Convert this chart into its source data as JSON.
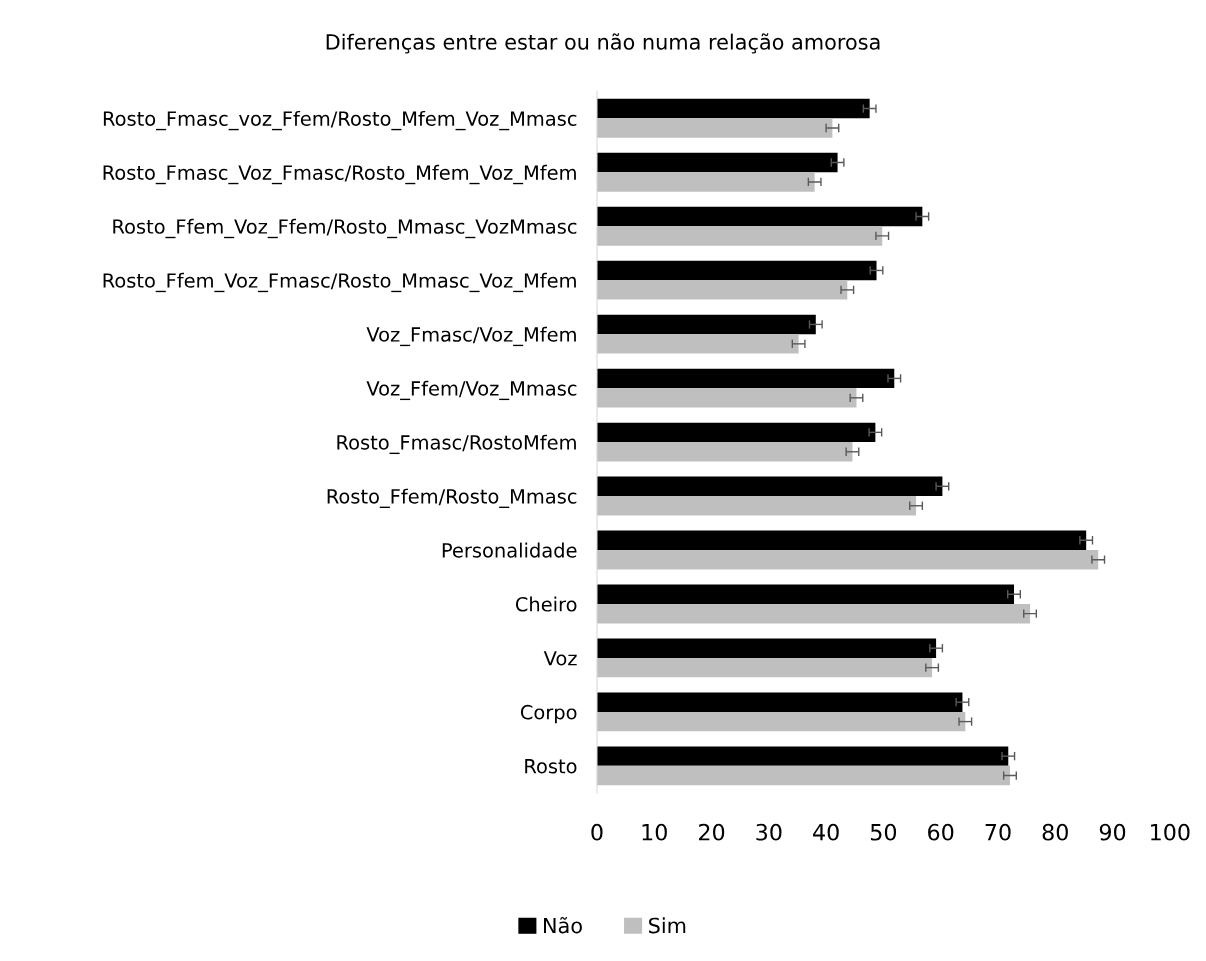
{
  "chart_data": {
    "type": "bar",
    "orientation": "horizontal",
    "title": "Diferenças entre estar ou não numa relação amorosa",
    "categories": [
      "Rosto_Fmasc_voz_Ffem/Rosto_Mfem_Voz_Mmasc",
      "Rosto_Fmasc_Voz_Fmasc/Rosto_Mfem_Voz_Mfem",
      "Rosto_Ffem_Voz_Ffem/Rosto_Mmasc_VozMmasc",
      "Rosto_Ffem_Voz_Fmasc/Rosto_Mmasc_Voz_Mfem",
      "Voz_Fmasc/Voz_Mfem",
      "Voz_Ffem/Voz_Mmasc",
      "Rosto_Fmasc/RostoMfem",
      "Rosto_Ffem/Rosto_Mmasc",
      "Personalidade",
      "Cheiro",
      "Voz",
      "Corpo",
      "Rosto"
    ],
    "series": [
      {
        "name": "Não",
        "color": "#000000",
        "values": [
          47.6,
          42.0,
          56.8,
          48.8,
          38.2,
          51.9,
          48.6,
          60.3,
          85.4,
          72.8,
          59.2,
          63.8,
          71.8
        ],
        "errors": [
          1.1,
          1.1,
          1.1,
          1.1,
          1.1,
          1.1,
          1.1,
          1.1,
          1.1,
          1.1,
          1.1,
          1.1,
          1.1
        ]
      },
      {
        "name": "Sim",
        "color": "#bfbfbf",
        "values": [
          41.1,
          38.0,
          49.8,
          43.7,
          35.2,
          45.3,
          44.6,
          55.7,
          87.5,
          75.6,
          58.5,
          64.3,
          72.1
        ],
        "errors": [
          1.1,
          1.1,
          1.1,
          1.1,
          1.1,
          1.1,
          1.1,
          1.1,
          1.1,
          1.1,
          1.1,
          1.1,
          1.1
        ]
      }
    ],
    "xlim": [
      0,
      100
    ],
    "xticks": [
      0,
      10,
      20,
      30,
      40,
      50,
      60,
      70,
      80,
      90,
      100
    ],
    "grid": false,
    "legend": "bottom"
  }
}
